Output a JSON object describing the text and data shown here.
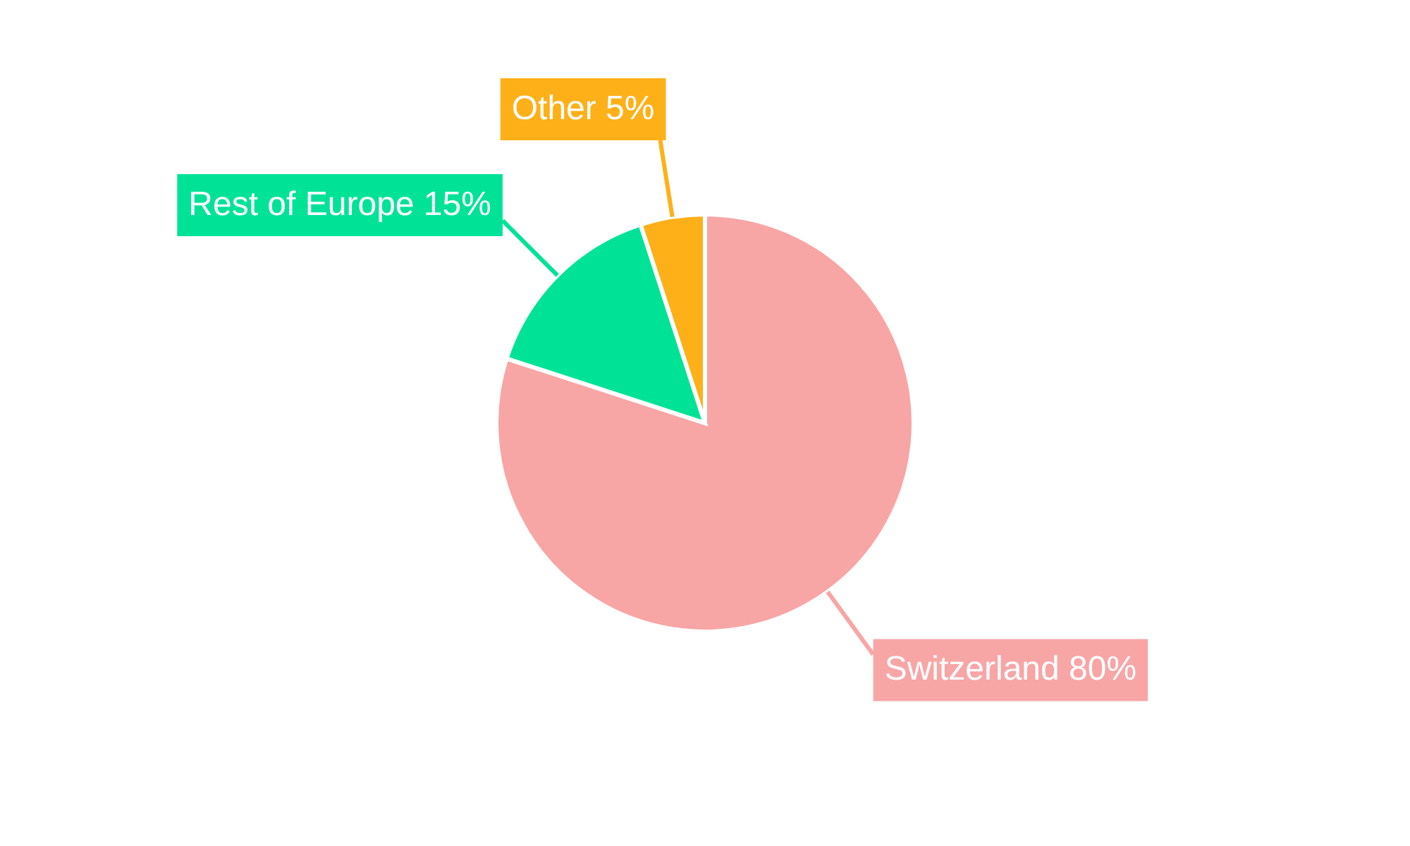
{
  "chart_data": {
    "type": "pie",
    "categories": [
      "Switzerland",
      "Rest of Europe",
      "Other"
    ],
    "values": [
      80,
      15,
      5
    ],
    "value_labels": [
      "80%",
      "15%",
      "5%"
    ],
    "colors": [
      "#f8a5a6",
      "#00e396",
      "#feb019"
    ]
  }
}
